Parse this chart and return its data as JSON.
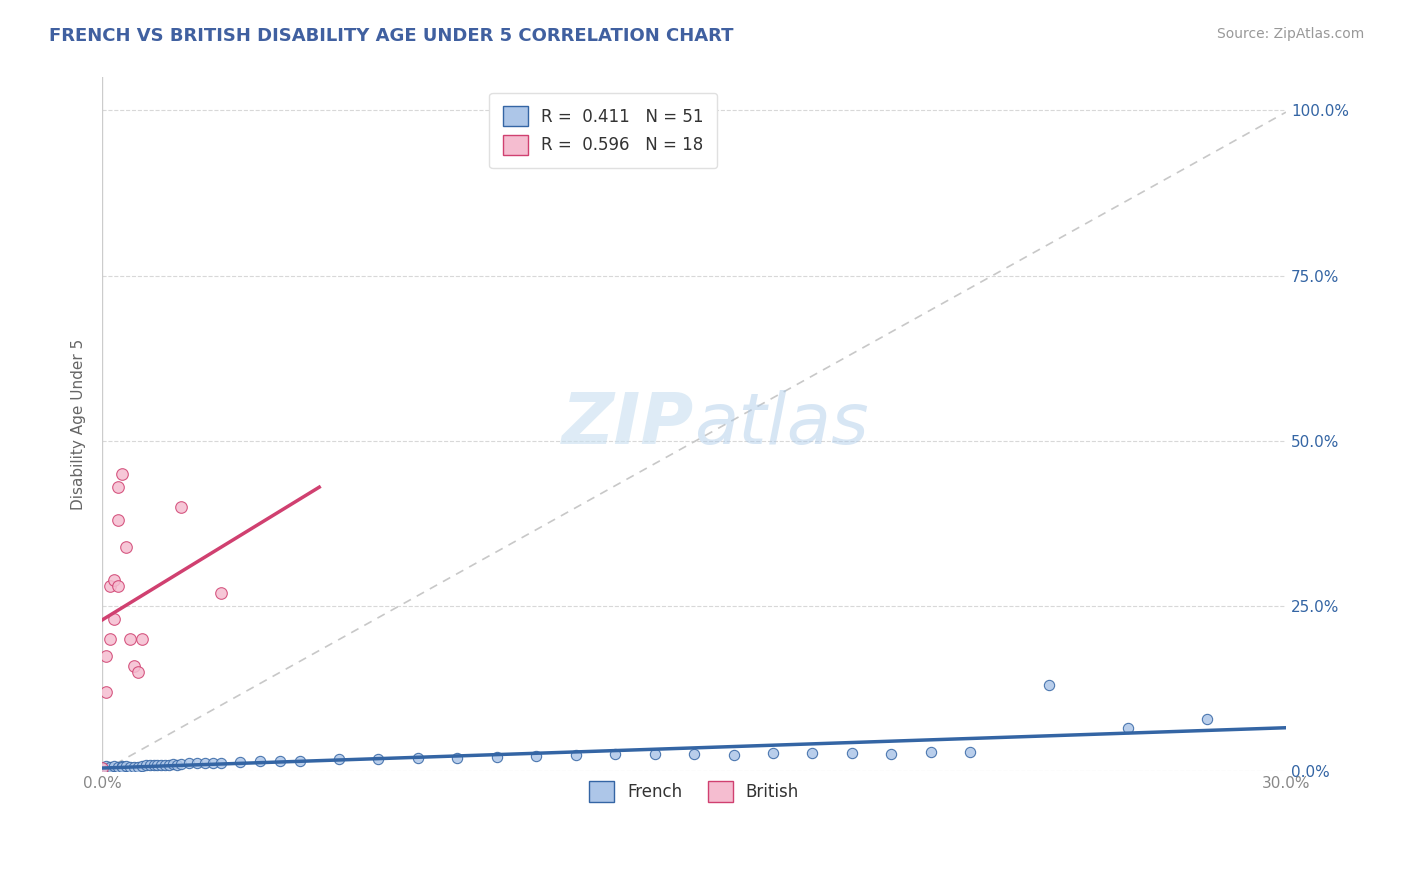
{
  "title": "FRENCH VS BRITISH DISABILITY AGE UNDER 5 CORRELATION CHART",
  "source": "Source: ZipAtlas.com",
  "ylabel": "Disability Age Under 5",
  "xlim": [
    0.0,
    0.3
  ],
  "ylim": [
    0.0,
    1.05
  ],
  "y_tick_labels_right": [
    "0.0%",
    "25.0%",
    "50.0%",
    "75.0%",
    "100.0%"
  ],
  "y_ticks_right": [
    0.0,
    0.25,
    0.5,
    0.75,
    1.0
  ],
  "french_r": 0.411,
  "french_n": 51,
  "british_r": 0.596,
  "british_n": 18,
  "french_color": "#adc6e8",
  "british_color": "#f5bdd0",
  "french_line_color": "#3465a4",
  "british_line_color": "#d04070",
  "diag_color": "#c8c8c8",
  "background_color": "#ffffff",
  "title_color": "#4060a0",
  "source_color": "#999999",
  "ylabel_color": "#666666",
  "tick_color": "#888888",
  "grid_color": "#d8d8d8",
  "french_x": [
    0.001,
    0.001,
    0.002,
    0.003,
    0.004,
    0.005,
    0.005,
    0.006,
    0.007,
    0.008,
    0.009,
    0.01,
    0.011,
    0.012,
    0.013,
    0.014,
    0.015,
    0.016,
    0.017,
    0.018,
    0.019,
    0.02,
    0.022,
    0.024,
    0.026,
    0.028,
    0.03,
    0.035,
    0.04,
    0.045,
    0.05,
    0.06,
    0.07,
    0.08,
    0.09,
    0.1,
    0.11,
    0.12,
    0.13,
    0.14,
    0.15,
    0.16,
    0.17,
    0.18,
    0.19,
    0.2,
    0.21,
    0.22,
    0.24,
    0.26,
    0.28
  ],
  "french_y": [
    0.005,
    0.008,
    0.006,
    0.008,
    0.007,
    0.008,
    0.006,
    0.008,
    0.007,
    0.006,
    0.007,
    0.008,
    0.009,
    0.009,
    0.01,
    0.009,
    0.01,
    0.01,
    0.01,
    0.011,
    0.01,
    0.011,
    0.012,
    0.012,
    0.013,
    0.013,
    0.013,
    0.014,
    0.015,
    0.016,
    0.016,
    0.018,
    0.019,
    0.02,
    0.021,
    0.022,
    0.024,
    0.025,
    0.026,
    0.026,
    0.027,
    0.025,
    0.028,
    0.028,
    0.028,
    0.026,
    0.03,
    0.03,
    0.13,
    0.065,
    0.08
  ],
  "british_x": [
    0.0,
    0.001,
    0.001,
    0.002,
    0.002,
    0.003,
    0.003,
    0.004,
    0.004,
    0.004,
    0.005,
    0.006,
    0.007,
    0.008,
    0.009,
    0.01,
    0.02,
    0.03
  ],
  "british_y": [
    0.005,
    0.175,
    0.12,
    0.2,
    0.28,
    0.29,
    0.23,
    0.38,
    0.43,
    0.28,
    0.45,
    0.34,
    0.2,
    0.16,
    0.15,
    0.2,
    0.4,
    0.27
  ]
}
